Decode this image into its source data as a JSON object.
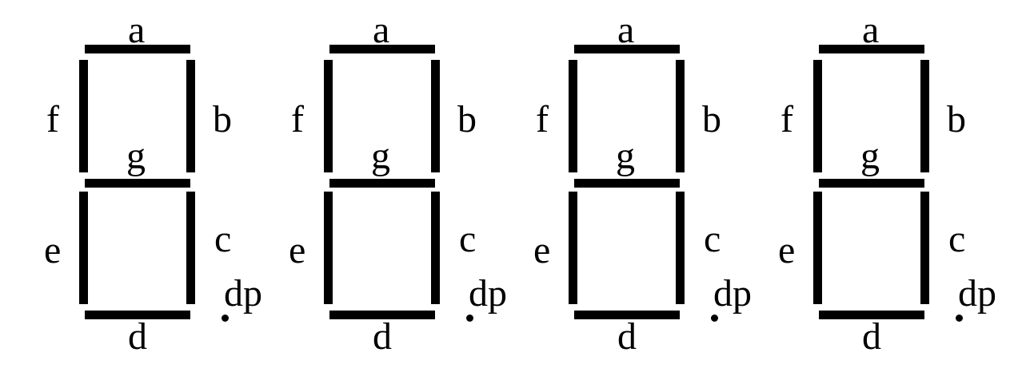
{
  "diagram": {
    "digits": [
      {
        "labels": {
          "a": "a",
          "b": "b",
          "c": "c",
          "d": "d",
          "e": "e",
          "f": "f",
          "g": "g",
          "dp": "dp"
        }
      },
      {
        "labels": {
          "a": "a",
          "b": "b",
          "c": "c",
          "d": "d",
          "e": "e",
          "f": "f",
          "g": "g",
          "dp": "dp"
        }
      },
      {
        "labels": {
          "a": "a",
          "b": "b",
          "c": "c",
          "d": "d",
          "e": "e",
          "f": "f",
          "g": "g",
          "dp": "dp"
        }
      },
      {
        "labels": {
          "a": "a",
          "b": "b",
          "c": "c",
          "d": "d",
          "e": "e",
          "f": "f",
          "g": "g",
          "dp": "dp"
        }
      }
    ],
    "colors": {
      "segment": "#000000",
      "background": "#ffffff"
    }
  }
}
